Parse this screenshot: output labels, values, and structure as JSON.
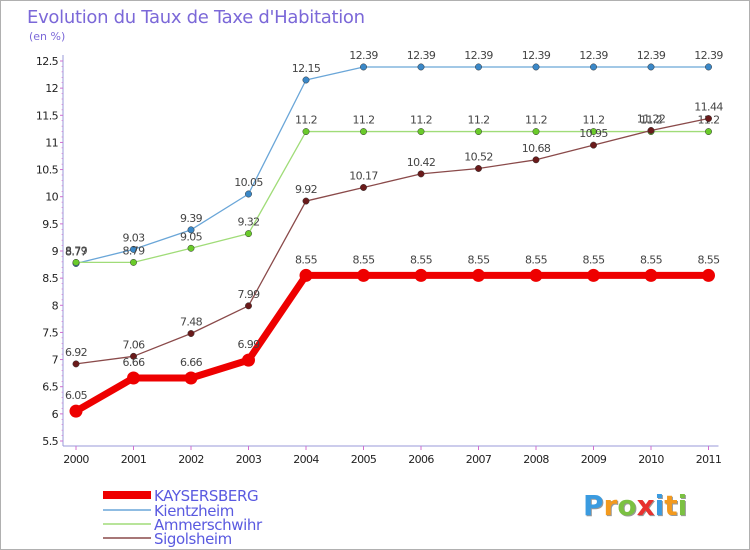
{
  "title": "Evolution du Taux de Taxe d'Habitation",
  "subtitle": "(en %)",
  "logo": {
    "text": "Proxiti",
    "letters": [
      {
        "ch": "P",
        "color": "#3a9be0"
      },
      {
        "ch": "r",
        "color": "#f39a1e"
      },
      {
        "ch": "o",
        "color": "#7bc142"
      },
      {
        "ch": "x",
        "color": "#e8312f"
      },
      {
        "ch": "i",
        "color": "#3a9be0"
      },
      {
        "ch": "t",
        "color": "#f39a1e"
      },
      {
        "ch": "i",
        "color": "#7bc142"
      }
    ]
  },
  "chart_data": {
    "type": "line",
    "title": "Evolution du Taux de Taxe d'Habitation",
    "ylabel": "(en %)",
    "xlabel": "",
    "x": [
      "2000",
      "2001",
      "2002",
      "2003",
      "2004",
      "2005",
      "2006",
      "2007",
      "2008",
      "2009",
      "2010",
      "2011"
    ],
    "ylim": [
      5.5,
      12.5
    ],
    "yticks": [
      "5.5",
      "6",
      "6.5",
      "7",
      "7.5",
      "8",
      "8.5",
      "9",
      "9.5",
      "10",
      "10.5",
      "11",
      "11.5",
      "12",
      "12.5"
    ],
    "grid": false,
    "legend": "bottom-left",
    "series": [
      {
        "name": "KAYSERSBERG",
        "color": "#ee0000",
        "line_color": "#ee0000",
        "emphasis": true,
        "values": [
          6.05,
          6.66,
          6.66,
          6.99,
          8.55,
          8.55,
          8.55,
          8.55,
          8.55,
          8.55,
          8.55,
          8.55
        ],
        "labels": [
          "6.05",
          "6.66",
          "6.66",
          "6.99",
          "8.55",
          "8.55",
          "8.55",
          "8.55",
          "8.55",
          "8.55",
          "8.55",
          "8.55"
        ]
      },
      {
        "name": "Kientzheim",
        "color": "#3a88c8",
        "line_color": "#6aa6d8",
        "values": [
          8.77,
          9.03,
          9.39,
          10.05,
          12.15,
          12.39,
          12.39,
          12.39,
          12.39,
          12.39,
          12.39,
          12.39
        ],
        "labels": [
          "8.77",
          "9.03",
          "9.39",
          "10.05",
          "12.15",
          "12.39",
          "12.39",
          "12.39",
          "12.39",
          "12.39",
          "12.39",
          "12.39"
        ]
      },
      {
        "name": "Ammerschwihr",
        "color": "#6acb2a",
        "line_color": "#a0dc78",
        "values": [
          8.79,
          8.79,
          9.05,
          9.32,
          11.2,
          11.2,
          11.2,
          11.2,
          11.2,
          11.2,
          11.2,
          11.2
        ],
        "labels": [
          "8.79",
          "8.79",
          "9.05",
          "9.32",
          "11.2",
          "11.2",
          "11.2",
          "11.2",
          "11.2",
          "11.2",
          "11.2",
          "11.2"
        ]
      },
      {
        "name": "Sigolsheim",
        "color": "#6a1a1a",
        "line_color": "#8a4a4a",
        "values": [
          6.92,
          7.06,
          7.48,
          7.99,
          9.92,
          10.17,
          10.42,
          10.52,
          10.68,
          10.95,
          11.22,
          11.44
        ],
        "labels": [
          "6.92",
          "7.06",
          "7.48",
          "7.99",
          "9.92",
          "10.17",
          "10.42",
          "10.52",
          "10.68",
          "10.95",
          "11.22",
          "11.44"
        ]
      }
    ]
  }
}
